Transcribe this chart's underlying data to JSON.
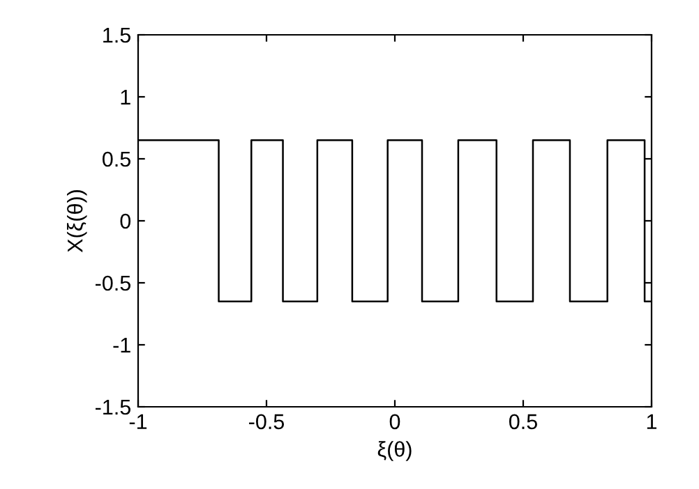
{
  "chart_data": {
    "type": "step",
    "xlabel": "ξ(θ)",
    "ylabel": "X(ξ(θ))",
    "x": [
      -1,
      -0.686,
      -0.559,
      -0.436,
      -0.302,
      -0.166,
      -0.028,
      0.106,
      0.247,
      0.396,
      0.538,
      0.682,
      0.828,
      0.973,
      1
    ],
    "series": [
      {
        "color": "#000000",
        "values": [
          0.65,
          -0.65,
          0.65,
          -0.65,
          0.65,
          -0.65,
          0.65,
          -0.65,
          0.65,
          -0.65,
          0.65,
          -0.65,
          0.65,
          -0.65,
          -0.65
        ]
      }
    ],
    "xlim": [
      -1,
      1
    ],
    "ylim": [
      -1.5,
      1.5
    ],
    "xticks": [
      {
        "value": -1,
        "label": "-1"
      },
      {
        "value": -0.5,
        "label": "-0.5"
      },
      0,
      0.5,
      1
    ],
    "yticks": [
      {
        "value": -1.5,
        "label": "-1.5"
      },
      {
        "value": -1,
        "label": "-1"
      },
      {
        "value": -0.5,
        "label": "-0.5"
      },
      0,
      0.5,
      1,
      1.5
    ],
    "grid": false,
    "legend": false
  }
}
